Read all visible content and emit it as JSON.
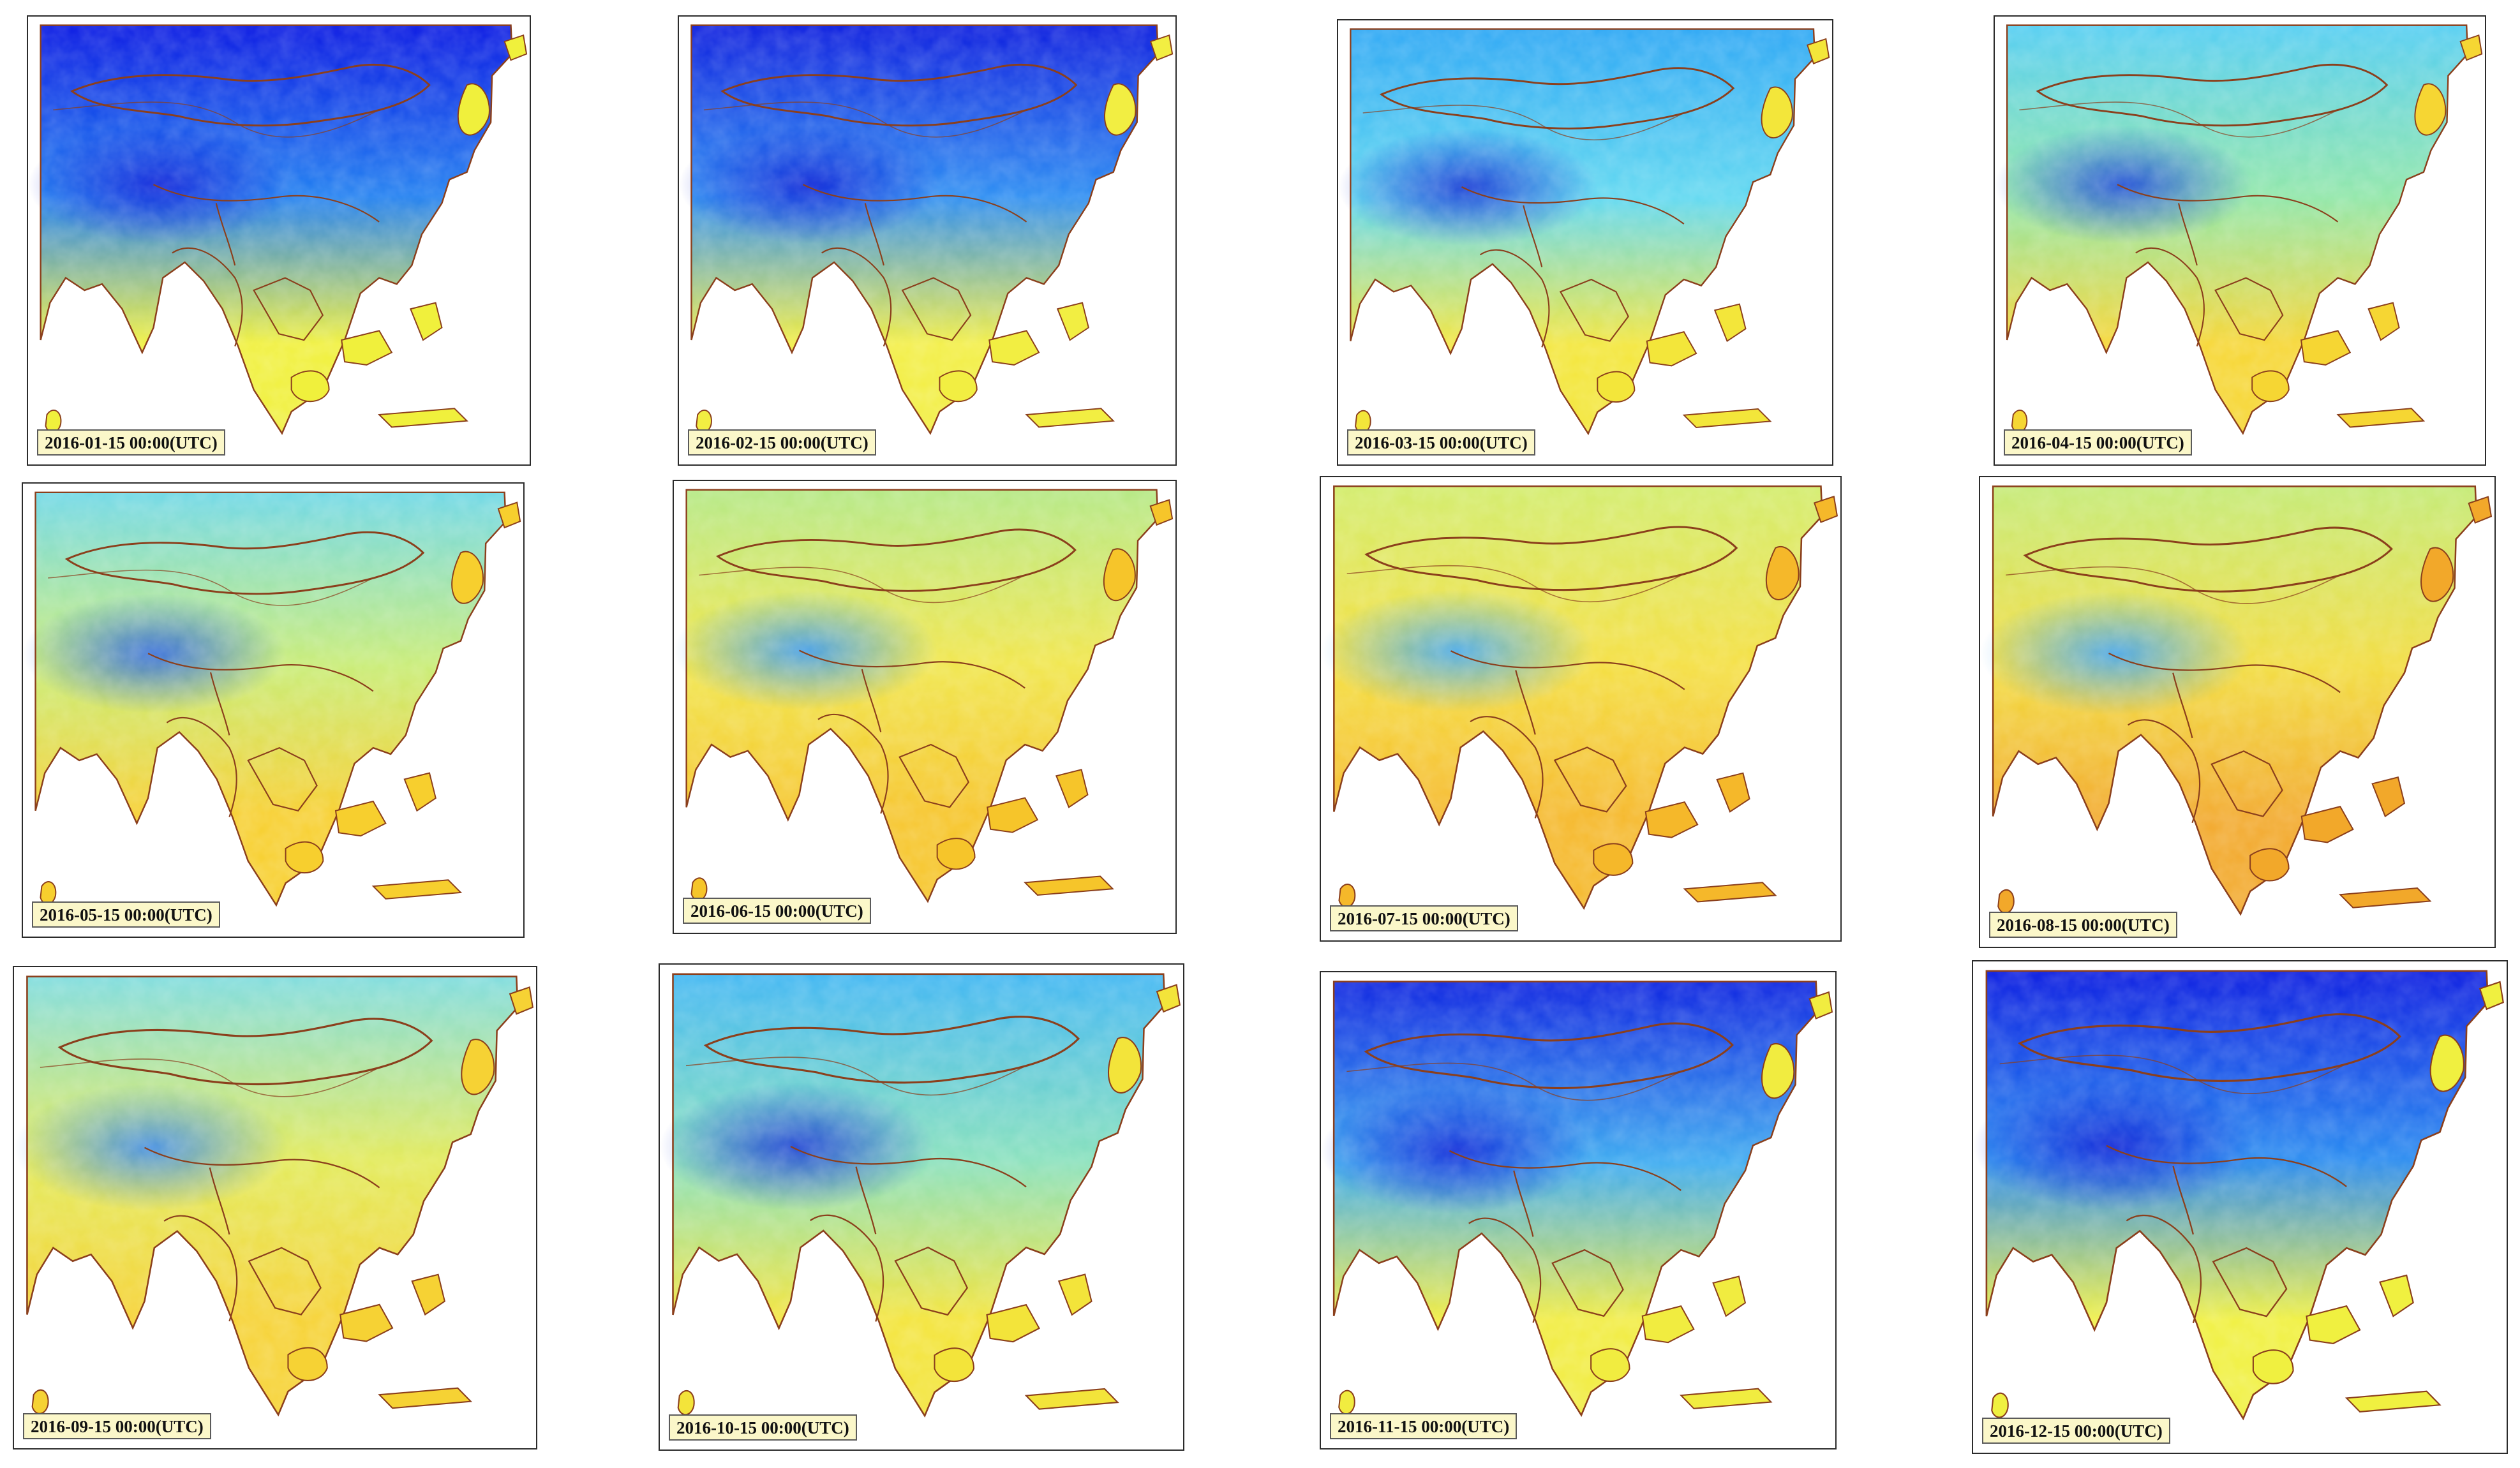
{
  "panels": [
    {
      "date_label": "2016-01-15 00:00(UTC)",
      "north": "#0616e2",
      "mid": "#1e7ef0",
      "south": "#f0f03c",
      "plateau": "#0a1fd8"
    },
    {
      "date_label": "2016-02-15 00:00(UTC)",
      "north": "#0a1cde",
      "mid": "#2a8cf2",
      "south": "#f2ee42",
      "plateau": "#0a22d6"
    },
    {
      "date_label": "2016-03-15 00:00(UTC)",
      "north": "#2aa6f4",
      "mid": "#5fd8f0",
      "south": "#f3e63a",
      "plateau": "#1436d4"
    },
    {
      "date_label": "2016-04-15 00:00(UTC)",
      "north": "#52cdf2",
      "mid": "#8fe6a8",
      "south": "#f6d633",
      "plateau": "#1f4cd8"
    },
    {
      "date_label": "2016-05-15 00:00(UTC)",
      "north": "#6fd8e6",
      "mid": "#c8ec74",
      "south": "#f7cf2e",
      "plateau": "#2c66dc"
    },
    {
      "date_label": "2016-06-15 00:00(UTC)",
      "north": "#b4e884",
      "mid": "#f0e64a",
      "south": "#f6c52a",
      "plateau": "#3c9aec"
    },
    {
      "date_label": "2016-07-15 00:00(UTC)",
      "north": "#d2ec6a",
      "mid": "#f4df40",
      "south": "#f5b82a",
      "plateau": "#45a8ee"
    },
    {
      "date_label": "2016-08-15 00:00(UTC)",
      "north": "#c4ea74",
      "mid": "#f2dc3e",
      "south": "#f2a82a",
      "plateau": "#42a4ee"
    },
    {
      "date_label": "2016-09-15 00:00(UTC)",
      "north": "#7edcde",
      "mid": "#e2ea58",
      "south": "#f6d234",
      "plateau": "#3d8ae6"
    },
    {
      "date_label": "2016-10-15 00:00(UTC)",
      "north": "#3fb6f2",
      "mid": "#86e0bc",
      "south": "#f3e43a",
      "plateau": "#1a3ed4"
    },
    {
      "date_label": "2016-11-15 00:00(UTC)",
      "north": "#0a22e0",
      "mid": "#3aaaf0",
      "south": "#f1ec40",
      "plateau": "#0c26d8"
    },
    {
      "date_label": "2016-12-15 00:00(UTC)",
      "north": "#081ae0",
      "mid": "#2488f0",
      "south": "#f0f040",
      "plateau": "#0a20d6"
    }
  ]
}
